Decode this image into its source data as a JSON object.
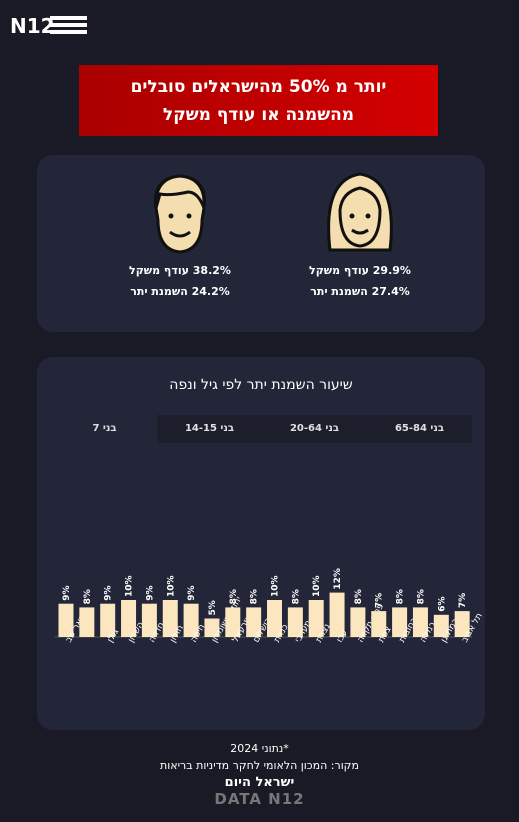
{
  "header": {
    "logo": "N12"
  },
  "banner": {
    "lines": [
      "יותר מ 50% מהישראלים סובלים",
      "מהשמנה או עודף משקל"
    ]
  },
  "stats": {
    "women": [
      "29.9% עודף משקל",
      "27.4% השמנת יתר"
    ],
    "men": [
      "38.2% עודף משקל",
      "24.2% השמנת יתר"
    ]
  },
  "tabs": [
    "בני 65-84",
    "בני 20-64",
    "בני 14-15",
    "בני 7"
  ],
  "chart_data": {
    "type": "bar",
    "title": "שיעור השמנת יתר לפי גיל ונפה",
    "color": "#fbe6bf",
    "categories": [
      "...באר שב",
      null,
      "גולן",
      "השרון",
      "חדרה",
      "חולון",
      "חיפה",
      "יהודה ושומרון",
      "יזרעאל",
      "ירושלים",
      "כנרת",
      "נגב מערבי",
      "נצרת",
      "עכו",
      "פתח תקווה",
      "צפת",
      "רחובות",
      "רמלה",
      "רמת גן",
      "תל אביב"
    ],
    "values": [
      9,
      8,
      9,
      10,
      9,
      10,
      9,
      5,
      8,
      8,
      10,
      8,
      10,
      12,
      8,
      7,
      8,
      8,
      6,
      7
    ],
    "value_labels": [
      "9%",
      "8%",
      "9%",
      "10%",
      "9%",
      "10%",
      "9%",
      "5%",
      "8%",
      "8%",
      "10%",
      "8%",
      "10%",
      "12%",
      "8%",
      "7%",
      "8%",
      "8%",
      "6%",
      "7%"
    ]
  },
  "footer": {
    "note": "*נתוני 2024",
    "source": "מקור: המכון הלאומי לחקר מדיניות בריאות",
    "brand": "ישראל היום",
    "data_logo": "DATA N12"
  }
}
